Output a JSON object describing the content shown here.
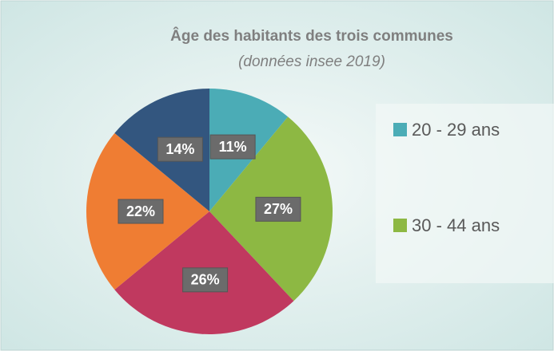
{
  "chart_data": {
    "type": "pie",
    "title": "Âge des habitants des trois communes",
    "subtitle": "(données insee 2019)",
    "categories": [
      "20 - 29 ans",
      "30 - 44 ans",
      null,
      null,
      null
    ],
    "values": [
      11,
      27,
      26,
      22,
      14
    ],
    "value_labels": [
      "11%",
      "27%",
      "26%",
      "22%",
      "14%"
    ],
    "colors": [
      "#4bacb6",
      "#8db843",
      "#c0395f",
      "#ef7d33",
      "#33567f"
    ],
    "legend": "right"
  }
}
